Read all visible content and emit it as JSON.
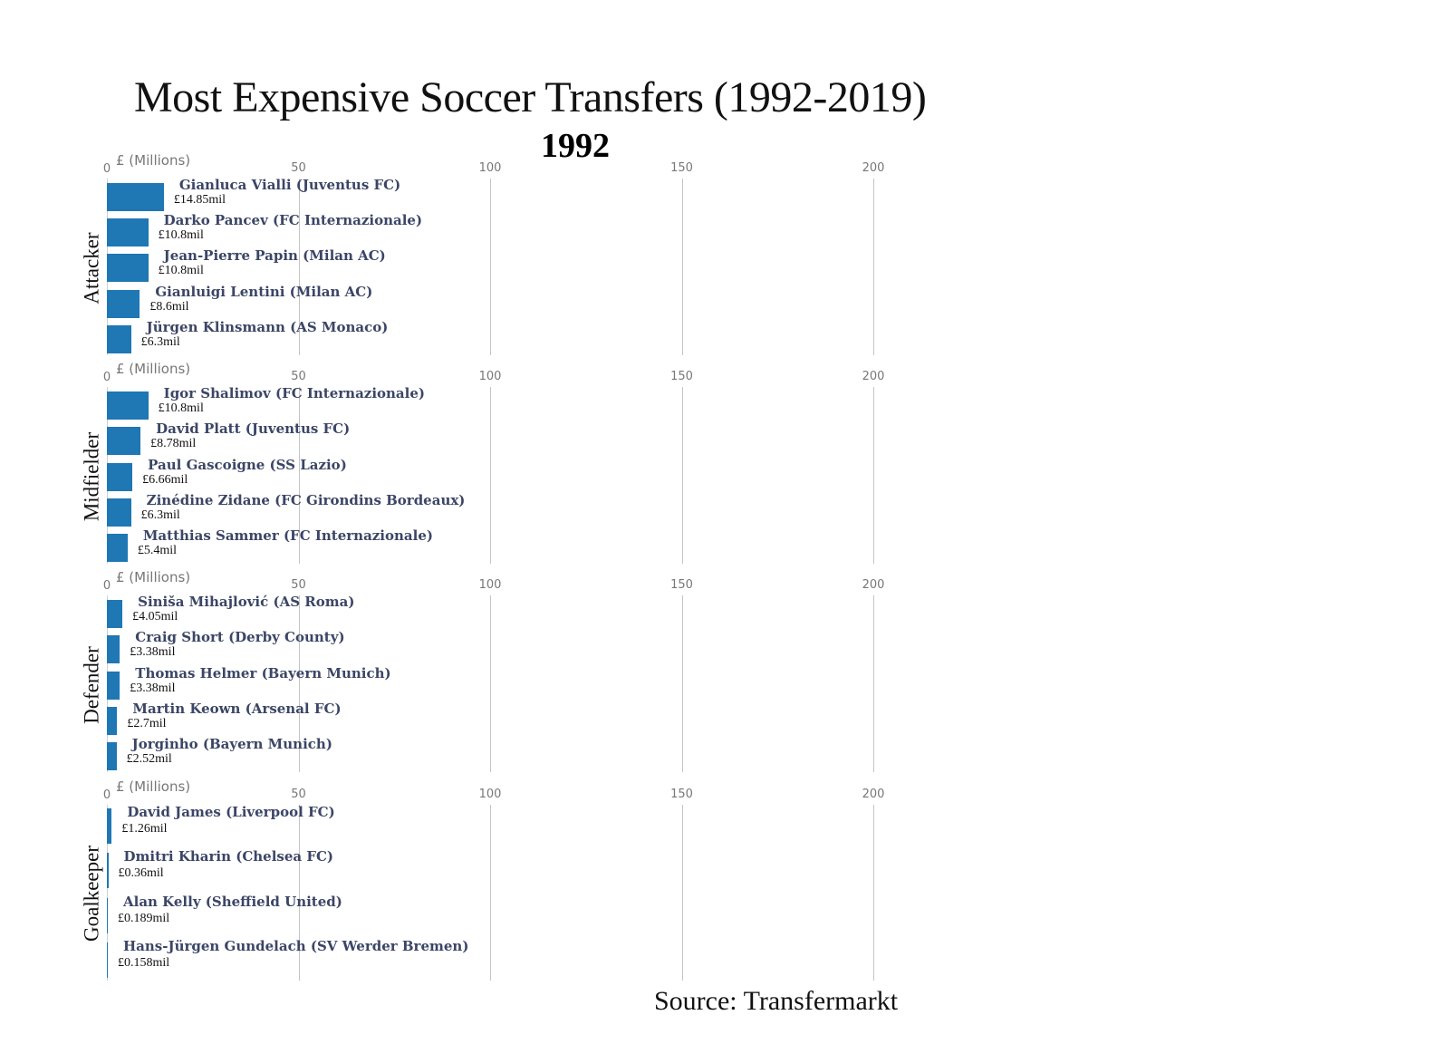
{
  "header": {
    "title": "Most Expensive Soccer Transfers (1992-2019)",
    "year": "1992"
  },
  "footer": {
    "source": "Source: Transfermarkt"
  },
  "colors": {
    "bar": "#1f77b4",
    "name_text": "#3b4566",
    "tick_text": "#777777",
    "gridline": "#c4c4c4"
  },
  "axis": {
    "label": "£ (Millions)",
    "ticks": [
      "0",
      "50",
      "100",
      "150",
      "200"
    ],
    "tick_values": [
      0,
      50,
      100,
      150,
      200
    ]
  },
  "panels": [
    {
      "position": "Attacker",
      "players": [
        {
          "name": "Gianluca Vialli (Juventus FC)",
          "value": 14.85,
          "label": "£14.85mil"
        },
        {
          "name": "Darko Pancev (FC Internazionale)",
          "value": 10.8,
          "label": "£10.8mil"
        },
        {
          "name": "Jean-Pierre Papin (Milan AC)",
          "value": 10.8,
          "label": "£10.8mil"
        },
        {
          "name": "Gianluigi Lentini (Milan AC)",
          "value": 8.6,
          "label": "£8.6mil"
        },
        {
          "name": "Jürgen Klinsmann (AS Monaco)",
          "value": 6.3,
          "label": "£6.3mil"
        }
      ]
    },
    {
      "position": "Midfielder",
      "players": [
        {
          "name": "Igor Shalimov (FC Internazionale)",
          "value": 10.8,
          "label": "£10.8mil"
        },
        {
          "name": "David Platt (Juventus FC)",
          "value": 8.78,
          "label": "£8.78mil"
        },
        {
          "name": "Paul Gascoigne (SS Lazio)",
          "value": 6.66,
          "label": "£6.66mil"
        },
        {
          "name": "Zinédine Zidane (FC Girondins Bordeaux)",
          "value": 6.3,
          "label": "£6.3mil"
        },
        {
          "name": "Matthias Sammer (FC Internazionale)",
          "value": 5.4,
          "label": "£5.4mil"
        }
      ]
    },
    {
      "position": "Defender",
      "players": [
        {
          "name": "Siniša Mihajlović (AS Roma)",
          "value": 4.05,
          "label": "£4.05mil"
        },
        {
          "name": "Craig Short (Derby County)",
          "value": 3.38,
          "label": "£3.38mil"
        },
        {
          "name": "Thomas Helmer (Bayern Munich)",
          "value": 3.38,
          "label": "£3.38mil"
        },
        {
          "name": "Martin Keown (Arsenal FC)",
          "value": 2.7,
          "label": "£2.7mil"
        },
        {
          "name": "Jorginho (Bayern Munich)",
          "value": 2.52,
          "label": "£2.52mil"
        }
      ]
    },
    {
      "position": "Goalkeeper",
      "players": [
        {
          "name": "David James (Liverpool FC)",
          "value": 1.26,
          "label": "£1.26mil"
        },
        {
          "name": "Dmitri Kharin (Chelsea FC)",
          "value": 0.36,
          "label": "£0.36mil"
        },
        {
          "name": "Alan Kelly (Sheffield United)",
          "value": 0.189,
          "label": "£0.189mil"
        },
        {
          "name": "Hans-Jürgen Gundelach (SV Werder Bremen)",
          "value": 0.158,
          "label": "£0.158mil"
        }
      ]
    }
  ],
  "chart_data": {
    "type": "bar",
    "orientation": "horizontal",
    "title": "Most Expensive Soccer Transfers (1992-2019)",
    "subtitle": "1992",
    "xlabel": "£ (Millions)",
    "xlim": [
      0,
      200
    ],
    "xticks": [
      0,
      50,
      100,
      150,
      200
    ],
    "grid": "vertical",
    "annotations": [
      "Source: Transfermarkt"
    ],
    "facets": [
      {
        "facet": "Attacker",
        "categories": [
          "Gianluca Vialli (Juventus FC)",
          "Darko Pancev (FC Internazionale)",
          "Jean-Pierre Papin (Milan AC)",
          "Gianluigi Lentini (Milan AC)",
          "Jürgen Klinsmann (AS Monaco)"
        ],
        "values": [
          14.85,
          10.8,
          10.8,
          8.6,
          6.3
        ]
      },
      {
        "facet": "Midfielder",
        "categories": [
          "Igor Shalimov (FC Internazionale)",
          "David Platt (Juventus FC)",
          "Paul Gascoigne (SS Lazio)",
          "Zinédine Zidane (FC Girondins Bordeaux)",
          "Matthias Sammer (FC Internazionale)"
        ],
        "values": [
          10.8,
          8.78,
          6.66,
          6.3,
          5.4
        ]
      },
      {
        "facet": "Defender",
        "categories": [
          "Siniša Mihajlović (AS Roma)",
          "Craig Short (Derby County)",
          "Thomas Helmer (Bayern Munich)",
          "Martin Keown (Arsenal FC)",
          "Jorginho (Bayern Munich)"
        ],
        "values": [
          4.05,
          3.38,
          3.38,
          2.7,
          2.52
        ]
      },
      {
        "facet": "Goalkeeper",
        "categories": [
          "David James (Liverpool FC)",
          "Dmitri Kharin (Chelsea FC)",
          "Alan Kelly (Sheffield United)",
          "Hans-Jürgen Gundelach (SV Werder Bremen)"
        ],
        "values": [
          1.26,
          0.36,
          0.189,
          0.158
        ]
      }
    ]
  }
}
